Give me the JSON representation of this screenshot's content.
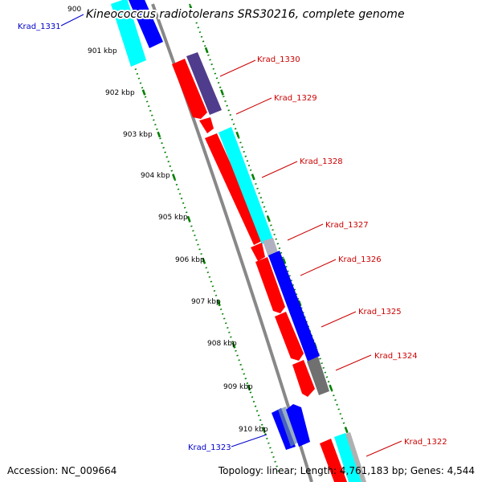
{
  "title": "Kineococcus radiotolerans SRS30216, complete genome",
  "footer": {
    "accession": "Accession: NC_009664",
    "summary": "Topology: linear; Length: 4,761,183 bp; Genes: 4,544"
  },
  "colors": {
    "label_forward": "#cc0000",
    "label_reverse": "#0000cc",
    "backbone": "#888888",
    "ticks": "#008000"
  },
  "ticks": [
    "900",
    "901 kbp",
    "902 kbp",
    "903 kbp",
    "904 kbp",
    "905 kbp",
    "906 kbp",
    "907 kbp",
    "908 kbp",
    "909 kbp",
    "910 kbp"
  ],
  "genes": [
    {
      "name": "Krad_1331",
      "label_color": "#0000cc"
    },
    {
      "name": "Krad_1330",
      "label_color": "#cc0000"
    },
    {
      "name": "Krad_1329",
      "label_color": "#cc0000"
    },
    {
      "name": "Krad_1328",
      "label_color": "#cc0000"
    },
    {
      "name": "Krad_1327",
      "label_color": "#cc0000"
    },
    {
      "name": "Krad_1326",
      "label_color": "#cc0000"
    },
    {
      "name": "Krad_1325",
      "label_color": "#cc0000"
    },
    {
      "name": "Krad_1324",
      "label_color": "#cc0000"
    },
    {
      "name": "Krad_1323",
      "label_color": "#0000cc"
    },
    {
      "name": "Krad_1322",
      "label_color": "#cc0000"
    }
  ]
}
